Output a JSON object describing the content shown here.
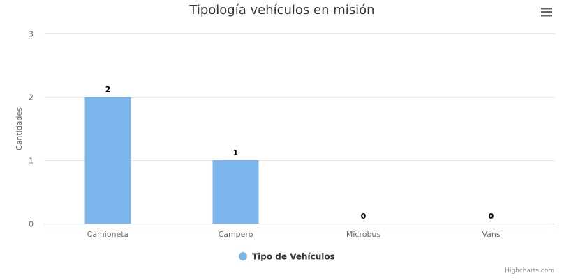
{
  "chart_data": {
    "type": "bar",
    "title": "Tipología vehículos en misión",
    "ylabel": "Cantidades",
    "xlabel": "",
    "categories": [
      "Camioneta",
      "Campero",
      "Microbus",
      "Vans"
    ],
    "series": [
      {
        "name": "Tipo de Vehículos",
        "values": [
          2,
          1,
          0,
          0
        ],
        "color": "#7cb5ec"
      }
    ],
    "ylim": [
      0,
      3
    ],
    "yticks": [
      0,
      1,
      2,
      3
    ],
    "grid": true,
    "legend": "bottom-center",
    "data_labels": true
  },
  "credits": "Highcharts.com",
  "menu": {
    "icon": "hamburger-menu-icon"
  },
  "colors": {
    "grid": "#e6e6e6",
    "axis": "#ccd6eb",
    "menu": "#666666"
  }
}
